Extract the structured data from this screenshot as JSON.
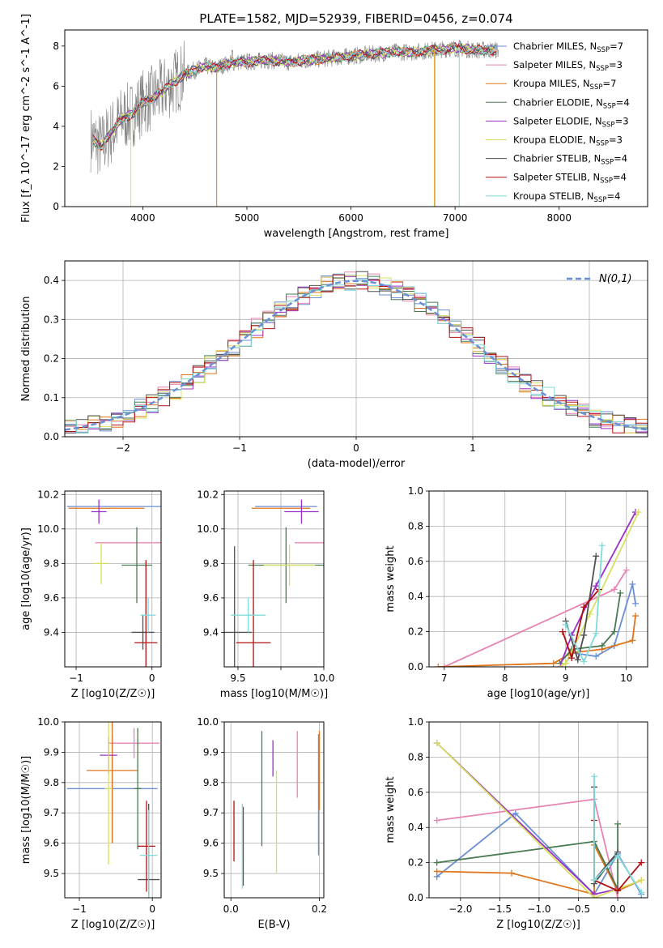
{
  "title": "PLATE=1582, MJD=52939, FIBERID=0456, z=0.074",
  "colors": {
    "Chabrier MILES": "#6a8fd4",
    "Salpeter MILES": "#e884b4",
    "Kroupa MILES": "#e0741a",
    "Chabrier ELODIE": "#4a7a52",
    "Salpeter ELODIE": "#9b30c8",
    "Kroupa ELODIE": "#d8e060",
    "Chabrier STELIB": "#505050",
    "Salpeter STELIB": "#b01010",
    "Kroupa STELIB": "#80dada",
    "spectrum": "#808080",
    "gaussian": "#6a8fd4",
    "grid": "#b0b0b0"
  },
  "chart_data": [
    {
      "id": "spectrum",
      "type": "line",
      "title": "PLATE=1582, MJD=52939, FIBERID=0456, z=0.074",
      "xlabel": "wavelength [Angstrom, rest frame]",
      "ylabel": "Flux [f_λ 10^-17 erg cm^-2 s^-1 A^-1]",
      "xlim": [
        3250,
        8850
      ],
      "ylim": [
        0,
        8.8
      ],
      "xticks": [
        4000,
        5000,
        6000,
        7000,
        8000
      ],
      "yticks": [
        0,
        2,
        4,
        6,
        8
      ],
      "grid": false,
      "legend_position": "right",
      "legend": [
        {
          "name": "Chabrier MILES",
          "nssp": "7"
        },
        {
          "name": "Salpeter MILES",
          "nssp": "3"
        },
        {
          "name": "Kroupa MILES",
          "nssp": "7"
        },
        {
          "name": "Chabrier ELODIE",
          "nssp": "4"
        },
        {
          "name": "Salpeter ELODIE",
          "nssp": "3"
        },
        {
          "name": "Kroupa ELODIE",
          "nssp": "3"
        },
        {
          "name": "Chabrier STELIB",
          "nssp": "4"
        },
        {
          "name": "Salpeter STELIB",
          "nssp": "4"
        },
        {
          "name": "Kroupa STELIB",
          "nssp": "4"
        }
      ],
      "data_points": {
        "x": [
          3500,
          3600,
          3700,
          3800,
          3900,
          4000,
          4100,
          4200,
          4300,
          4400,
          4500,
          4600,
          4700,
          4800,
          4900,
          5000,
          5200,
          5400,
          5600,
          5800,
          6000,
          6200,
          6400,
          6600,
          6800,
          7000,
          7200,
          7400
        ],
        "y": [
          3.4,
          3.0,
          3.7,
          4.4,
          4.6,
          5.2,
          5.4,
          5.8,
          6.2,
          6.6,
          6.8,
          7.0,
          6.9,
          7.1,
          7.2,
          7.2,
          7.3,
          7.2,
          7.3,
          7.4,
          7.5,
          7.6,
          7.7,
          7.7,
          7.8,
          7.9,
          7.8,
          7.8
        ]
      }
    },
    {
      "id": "residual-hist",
      "type": "line",
      "xlabel": "(data-model)/error",
      "ylabel": "Normed distribution",
      "xlim": [
        -2.5,
        2.5
      ],
      "ylim": [
        0,
        0.45
      ],
      "xticks": [
        -2,
        -1,
        0,
        1,
        2
      ],
      "yticks": [
        0.0,
        0.1,
        0.2,
        0.3,
        0.4
      ],
      "grid": true,
      "legend_position": "top-right",
      "gaussian_label": "N(0,1)"
    },
    {
      "id": "age-vs-Z",
      "type": "scatter",
      "xlabel": "Z [log10(Z/Z☉)]",
      "ylabel": "age [log10(age/yr)]",
      "xlim": [
        -1.15,
        0.12
      ],
      "ylim": [
        9.2,
        10.22
      ],
      "xticks": [
        -1,
        0
      ],
      "yticks": [
        9.4,
        9.6,
        9.8,
        10.0,
        10.2
      ],
      "grid": true,
      "errorbars": [
        {
          "series": "Chabrier MILES",
          "x": -0.5,
          "y": 10.13,
          "xerr": 0.62,
          "yerr": 0.0
        },
        {
          "series": "Salpeter MILES",
          "x": -0.25,
          "y": 9.92,
          "xerr": 0.5,
          "yerr": 0.0
        },
        {
          "series": "Kroupa MILES",
          "x": -0.6,
          "y": 10.12,
          "xerr": 0.5,
          "yerr": 0.0
        },
        {
          "series": "Chabrier ELODIE",
          "x": -0.2,
          "y": 9.79,
          "xerr": 0.2,
          "yerr": 0.22
        },
        {
          "series": "Salpeter ELODIE",
          "x": -0.7,
          "y": 10.1,
          "xerr": 0.1,
          "yerr": 0.07
        },
        {
          "series": "Kroupa ELODIE",
          "x": -0.67,
          "y": 9.8,
          "xerr": 0.1,
          "yerr": 0.12
        },
        {
          "series": "Chabrier STELIB",
          "x": -0.12,
          "y": 9.4,
          "xerr": 0.15,
          "yerr": 0.1
        },
        {
          "series": "Salpeter STELIB",
          "x": -0.08,
          "y": 9.34,
          "xerr": 0.15,
          "yerr": 0.48
        },
        {
          "series": "Kroupa STELIB",
          "x": -0.05,
          "y": 9.5,
          "xerr": 0.1,
          "yerr": 0.1
        }
      ]
    },
    {
      "id": "age-vs-mass",
      "type": "scatter",
      "xlabel": "mass [log10(M/M☉)]",
      "ylabel": "",
      "xlim": [
        9.42,
        10.0
      ],
      "ylim": [
        9.2,
        10.22
      ],
      "xticks": [
        9.5,
        9.75,
        10.0
      ],
      "yticks": [
        9.4,
        9.6,
        9.8,
        10.0,
        10.2
      ],
      "grid": true,
      "errorbars": [
        {
          "series": "Chabrier MILES",
          "x": 9.78,
          "y": 10.13,
          "xerr": 0.18,
          "yerr": 0.0
        },
        {
          "series": "Salpeter MILES",
          "x": 9.93,
          "y": 9.92,
          "xerr": 0.1,
          "yerr": 0.0
        },
        {
          "series": "Kroupa MILES",
          "x": 9.75,
          "y": 10.12,
          "xerr": 0.17,
          "yerr": 0.0
        },
        {
          "series": "Chabrier ELODIE",
          "x": 9.78,
          "y": 9.79,
          "xerr": 0.22,
          "yerr": 0.22
        },
        {
          "series": "Salpeter ELODIE",
          "x": 9.87,
          "y": 10.1,
          "xerr": 0.1,
          "yerr": 0.07
        },
        {
          "series": "Kroupa ELODIE",
          "x": 9.8,
          "y": 9.79,
          "xerr": 0.15,
          "yerr": 0.12
        },
        {
          "series": "Chabrier STELIB",
          "x": 9.48,
          "y": 9.4,
          "xerr": 0.1,
          "yerr": 0.5
        },
        {
          "series": "Salpeter STELIB",
          "x": 9.59,
          "y": 9.34,
          "xerr": 0.1,
          "yerr": 0.48
        },
        {
          "series": "Kroupa STELIB",
          "x": 9.56,
          "y": 9.5,
          "xerr": 0.1,
          "yerr": 0.1
        }
      ]
    },
    {
      "id": "weight-vs-age",
      "type": "line",
      "xlabel": "age [log10(age/yr)]",
      "ylabel": "mass weight",
      "xlim": [
        6.75,
        10.35
      ],
      "ylim": [
        0,
        1.0
      ],
      "xticks": [
        7,
        8,
        9,
        10
      ],
      "yticks": [
        0.0,
        0.2,
        0.4,
        0.6,
        0.8,
        1.0
      ],
      "grid": true,
      "series": [
        {
          "series": "Chabrier MILES",
          "x": [
            8.9,
            9.0,
            9.1,
            9.5,
            9.8,
            10.1,
            10.15
          ],
          "y": [
            0.0,
            0.02,
            0.08,
            0.06,
            0.12,
            0.47,
            0.36
          ]
        },
        {
          "series": "Salpeter MILES",
          "x": [
            7.0,
            9.8,
            10.0
          ],
          "y": [
            0.0,
            0.44,
            0.55
          ]
        },
        {
          "series": "Kroupa MILES",
          "x": [
            6.9,
            8.8,
            9.1,
            9.6,
            10.1,
            10.15
          ],
          "y": [
            0.0,
            0.02,
            0.08,
            0.1,
            0.15,
            0.29
          ]
        },
        {
          "series": "Chabrier ELODIE",
          "x": [
            8.9,
            9.1,
            9.6,
            9.8,
            9.9
          ],
          "y": [
            0.02,
            0.1,
            0.12,
            0.2,
            0.42
          ]
        },
        {
          "series": "Salpeter ELODIE",
          "x": [
            8.9,
            9.1,
            9.5,
            10.15
          ],
          "y": [
            0.0,
            0.18,
            0.46,
            0.88
          ]
        },
        {
          "series": "Kroupa ELODIE",
          "x": [
            8.9,
            9.0,
            9.4,
            10.2
          ],
          "y": [
            0.0,
            0.02,
            0.3,
            0.88
          ]
        },
        {
          "series": "Chabrier STELIB",
          "x": [
            9.0,
            9.2,
            9.3,
            9.5
          ],
          "y": [
            0.26,
            0.04,
            0.18,
            0.63
          ]
        },
        {
          "series": "Salpeter STELIB",
          "x": [
            8.95,
            9.1,
            9.3,
            9.55
          ],
          "y": [
            0.2,
            0.05,
            0.34,
            0.44
          ]
        },
        {
          "series": "Kroupa STELIB",
          "x": [
            9.0,
            9.3,
            9.5,
            9.6
          ],
          "y": [
            0.24,
            0.03,
            0.19,
            0.69
          ]
        }
      ]
    },
    {
      "id": "mass-vs-Z",
      "type": "scatter",
      "xlabel": "Z [log10(Z/Z☉)]",
      "ylabel": "mass [log10(M/M☉)]",
      "xlim": [
        -1.2,
        0.12
      ],
      "ylim": [
        9.42,
        10.0
      ],
      "xticks": [
        -1,
        0
      ],
      "yticks": [
        9.5,
        9.6,
        9.7,
        9.8,
        9.9,
        10.0
      ],
      "grid": true,
      "errorbars": [
        {
          "series": "Chabrier MILES",
          "x": -0.55,
          "y": 9.78,
          "xerr": 0.62,
          "yerr": 0.18
        },
        {
          "series": "Salpeter MILES",
          "x": -0.25,
          "y": 9.93,
          "xerr": 0.35,
          "yerr": 0.05
        },
        {
          "series": "Kroupa MILES",
          "x": -0.55,
          "y": 9.84,
          "xerr": 0.35,
          "yerr": 0.24
        },
        {
          "series": "Chabrier ELODIE",
          "x": -0.2,
          "y": 9.78,
          "xerr": 0.05,
          "yerr": 0.2
        },
        {
          "series": "Salpeter ELODIE",
          "x": -0.6,
          "y": 9.89,
          "xerr": 0.12,
          "yerr": 0.06
        },
        {
          "series": "Kroupa ELODIE",
          "x": -0.6,
          "y": 9.78,
          "xerr": 0.05,
          "yerr": 0.25
        },
        {
          "series": "Chabrier STELIB",
          "x": -0.05,
          "y": 9.48,
          "xerr": 0.15,
          "yerr": 0.25
        },
        {
          "series": "Salpeter STELIB",
          "x": -0.08,
          "y": 9.59,
          "xerr": 0.12,
          "yerr": 0.15
        },
        {
          "series": "Kroupa STELIB",
          "x": -0.05,
          "y": 9.56,
          "xerr": 0.12,
          "yerr": 0.15
        }
      ]
    },
    {
      "id": "mass-vs-ebv",
      "type": "scatter",
      "xlabel": "E(B-V)",
      "ylabel": "",
      "xlim": [
        -0.015,
        0.21
      ],
      "ylim": [
        9.42,
        10.0
      ],
      "xticks": [
        0.0,
        0.2
      ],
      "yticks": [
        9.5,
        9.6,
        9.7,
        9.8,
        9.9,
        10.0
      ],
      "grid": true,
      "errorbars": [
        {
          "series": "Chabrier MILES",
          "x": 0.198,
          "y": 9.76,
          "xerr": 0.0,
          "yerr": 0.2
        },
        {
          "series": "Salpeter MILES",
          "x": 0.15,
          "y": 9.86,
          "xerr": 0.0,
          "yerr": 0.11
        },
        {
          "series": "Kroupa MILES",
          "x": 0.2,
          "y": 9.84,
          "xerr": 0.0,
          "yerr": 0.13
        },
        {
          "series": "Chabrier ELODIE",
          "x": 0.07,
          "y": 9.78,
          "xerr": 0.0,
          "yerr": 0.19
        },
        {
          "series": "Salpeter ELODIE",
          "x": 0.095,
          "y": 9.88,
          "xerr": 0.0,
          "yerr": 0.06
        },
        {
          "series": "Kroupa ELODIE",
          "x": 0.103,
          "y": 9.67,
          "xerr": 0.0,
          "yerr": 0.17
        },
        {
          "series": "Chabrier STELIB",
          "x": 0.028,
          "y": 9.59,
          "xerr": 0.0,
          "yerr": 0.13
        },
        {
          "series": "Salpeter STELIB",
          "x": 0.007,
          "y": 9.64,
          "xerr": 0.0,
          "yerr": 0.1
        },
        {
          "series": "Kroupa STELIB",
          "x": 0.026,
          "y": 9.59,
          "xerr": 0.0,
          "yerr": 0.14
        }
      ]
    },
    {
      "id": "weight-vs-Z",
      "type": "line",
      "xlabel": "Z [log10(Z/Z☉)]",
      "ylabel": "mass weight",
      "xlim": [
        -2.4,
        0.38
      ],
      "ylim": [
        0,
        1.0
      ],
      "xticks": [
        -2.0,
        -1.5,
        -1.0,
        -0.5,
        0.0
      ],
      "yticks": [
        0.0,
        0.2,
        0.4,
        0.6,
        0.8,
        1.0
      ],
      "grid": true,
      "series": [
        {
          "series": "Chabrier MILES",
          "x": [
            -2.3,
            -1.3,
            -0.3,
            0.0,
            0.3
          ],
          "y": [
            0.12,
            0.48,
            0.02,
            0.25,
            0.02
          ]
        },
        {
          "series": "Salpeter MILES",
          "x": [
            -2.3,
            -0.3,
            0.0
          ],
          "y": [
            0.44,
            0.56,
            0.0
          ]
        },
        {
          "series": "Kroupa MILES",
          "x": [
            -2.3,
            -1.35,
            -0.3,
            -0.3,
            0.0,
            0.3
          ],
          "y": [
            0.15,
            0.14,
            0.02,
            0.3,
            0.04,
            0.1
          ]
        },
        {
          "series": "Chabrier ELODIE",
          "x": [
            -2.3,
            -0.3,
            0.0,
            0.0
          ],
          "y": [
            0.2,
            0.32,
            0.05,
            0.42
          ]
        },
        {
          "series": "Salpeter ELODIE",
          "x": [
            -2.3,
            -0.3,
            0.0
          ],
          "y": [
            0.88,
            0.02,
            0.05
          ]
        },
        {
          "series": "Kroupa ELODIE",
          "x": [
            -2.3,
            -0.3,
            0.3
          ],
          "y": [
            0.88,
            0.0,
            0.1
          ]
        },
        {
          "series": "Chabrier STELIB",
          "x": [
            -0.3,
            -0.3,
            0.0,
            -0.3
          ],
          "y": [
            0.63,
            0.08,
            0.26,
            0.1
          ]
        },
        {
          "series": "Salpeter STELIB",
          "x": [
            -0.3,
            -0.3,
            0.0,
            0.3
          ],
          "y": [
            0.44,
            0.1,
            0.04,
            0.2
          ]
        },
        {
          "series": "Kroupa STELIB",
          "x": [
            -0.3,
            -0.3,
            0.0,
            0.3
          ],
          "y": [
            0.69,
            0.1,
            0.24,
            0.03
          ]
        }
      ]
    }
  ]
}
